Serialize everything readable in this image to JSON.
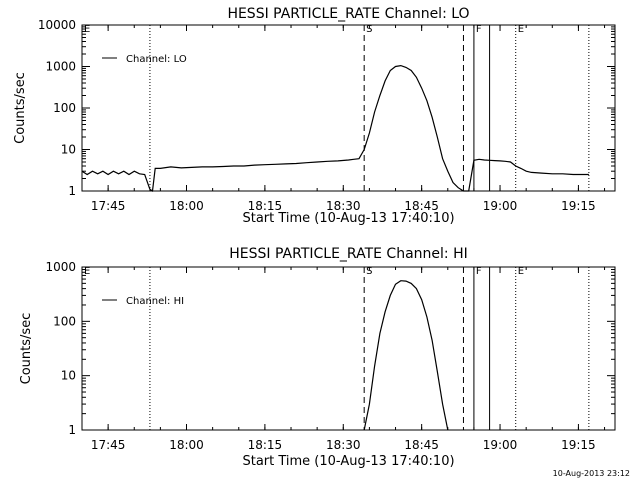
{
  "chart_data": [
    {
      "type": "line",
      "title": "HESSI PARTICLE_RATE Channel: LO",
      "xlabel": "Start Time (10-Aug-13 17:40:10)",
      "ylabel": "Counts/sec",
      "yscale": "log",
      "ylim": [
        1,
        10000
      ],
      "xlim": [
        "17:40",
        "19:22"
      ],
      "x_ticks": [
        "17:45",
        "18:00",
        "18:15",
        "18:30",
        "18:45",
        "19:00",
        "19:15"
      ],
      "y_ticks": [
        "1",
        "10",
        "100",
        "1000",
        "10000"
      ],
      "legend": {
        "placement": "top-left",
        "entries": [
          "Channel: LO"
        ]
      },
      "markers": [
        {
          "time": "17:40",
          "style": "dotted",
          "label": "E"
        },
        {
          "time": "17:53",
          "style": "dotted",
          "label": ""
        },
        {
          "time": "18:34",
          "style": "dashed",
          "label": "S"
        },
        {
          "time": "18:53",
          "style": "dashed",
          "label": ""
        },
        {
          "time": "18:55",
          "style": "solid",
          "label": "F"
        },
        {
          "time": "18:58",
          "style": "solid",
          "label": ""
        },
        {
          "time": "19:03",
          "style": "dotted",
          "label": "E"
        },
        {
          "time": "19:17",
          "style": "dotted",
          "label": ""
        }
      ],
      "series": [
        {
          "name": "Channel: LO",
          "x": [
            "17:40",
            "17:41",
            "17:42",
            "17:43",
            "17:44",
            "17:45",
            "17:46",
            "17:47",
            "17:48",
            "17:49",
            "17:50",
            "17:51",
            "17:52",
            "17:53",
            "17:53:30",
            "17:54",
            "17:55",
            "17:57",
            "17:59",
            "18:01",
            "18:03",
            "18:05",
            "18:07",
            "18:09",
            "18:11",
            "18:13",
            "18:15",
            "18:17",
            "18:19",
            "18:21",
            "18:23",
            "18:25",
            "18:27",
            "18:29",
            "18:31",
            "18:32",
            "18:33",
            "18:34",
            "18:35",
            "18:36",
            "18:37",
            "18:38",
            "18:39",
            "18:40",
            "18:41",
            "18:42",
            "18:43",
            "18:44",
            "18:45",
            "18:46",
            "18:47",
            "18:48",
            "18:49",
            "18:50",
            "18:51",
            "18:52",
            "18:53",
            "18:54",
            "18:55",
            "18:56",
            "18:57",
            "18:58",
            "18:59",
            "19:00",
            "19:01",
            "19:02",
            "19:03",
            "19:04",
            "19:05",
            "19:06",
            "19:08",
            "19:10",
            "19:12",
            "19:14",
            "19:16",
            "19:17"
          ],
          "y": [
            3,
            2.5,
            3,
            2.6,
            3,
            2.5,
            3,
            2.6,
            3,
            2.5,
            3,
            2.6,
            2.5,
            1.1,
            1,
            3.5,
            3.5,
            3.8,
            3.6,
            3.7,
            3.8,
            3.8,
            3.9,
            4.0,
            4.0,
            4.2,
            4.3,
            4.4,
            4.5,
            4.6,
            4.8,
            5.0,
            5.2,
            5.3,
            5.6,
            5.8,
            6.0,
            10,
            25,
            80,
            200,
            450,
            800,
            1000,
            1050,
            950,
            800,
            550,
            300,
            150,
            60,
            20,
            6,
            3,
            1.6,
            1.2,
            1,
            1,
            5.5,
            5.8,
            5.6,
            5.5,
            5.4,
            5.3,
            5.2,
            5.0,
            4.0,
            3.5,
            3.0,
            2.8,
            2.7,
            2.6,
            2.6,
            2.5,
            2.5,
            2.5
          ]
        }
      ]
    },
    {
      "type": "line",
      "title": "HESSI PARTICLE_RATE Channel: HI",
      "xlabel": "Start Time (10-Aug-13 17:40:10)",
      "ylabel": "Counts/sec",
      "yscale": "log",
      "ylim": [
        1,
        1000
      ],
      "xlim": [
        "17:40",
        "19:22"
      ],
      "x_ticks": [
        "17:45",
        "18:00",
        "18:15",
        "18:30",
        "18:45",
        "19:00",
        "19:15"
      ],
      "y_ticks": [
        "1",
        "10",
        "100",
        "1000"
      ],
      "legend": {
        "placement": "top-left",
        "entries": [
          "Channel: HI"
        ]
      },
      "markers": [
        {
          "time": "17:40",
          "style": "dotted",
          "label": "E"
        },
        {
          "time": "17:53",
          "style": "dotted",
          "label": ""
        },
        {
          "time": "18:34",
          "style": "dashed",
          "label": "S"
        },
        {
          "time": "18:53",
          "style": "dashed",
          "label": ""
        },
        {
          "time": "18:55",
          "style": "solid",
          "label": "F"
        },
        {
          "time": "18:58",
          "style": "solid",
          "label": ""
        },
        {
          "time": "19:03",
          "style": "dotted",
          "label": "E"
        },
        {
          "time": "19:17",
          "style": "dotted",
          "label": ""
        }
      ],
      "series": [
        {
          "name": "Channel: HI",
          "x": [
            "18:34",
            "18:35",
            "18:36",
            "18:37",
            "18:38",
            "18:39",
            "18:40",
            "18:41",
            "18:42",
            "18:43",
            "18:44",
            "18:45",
            "18:46",
            "18:47",
            "18:48",
            "18:49",
            "18:50"
          ],
          "y": [
            1,
            3,
            15,
            60,
            150,
            300,
            480,
            560,
            550,
            500,
            400,
            250,
            120,
            45,
            12,
            3,
            1
          ]
        }
      ]
    }
  ],
  "footer": {
    "timestamp": "10-Aug-2013 23:12"
  }
}
